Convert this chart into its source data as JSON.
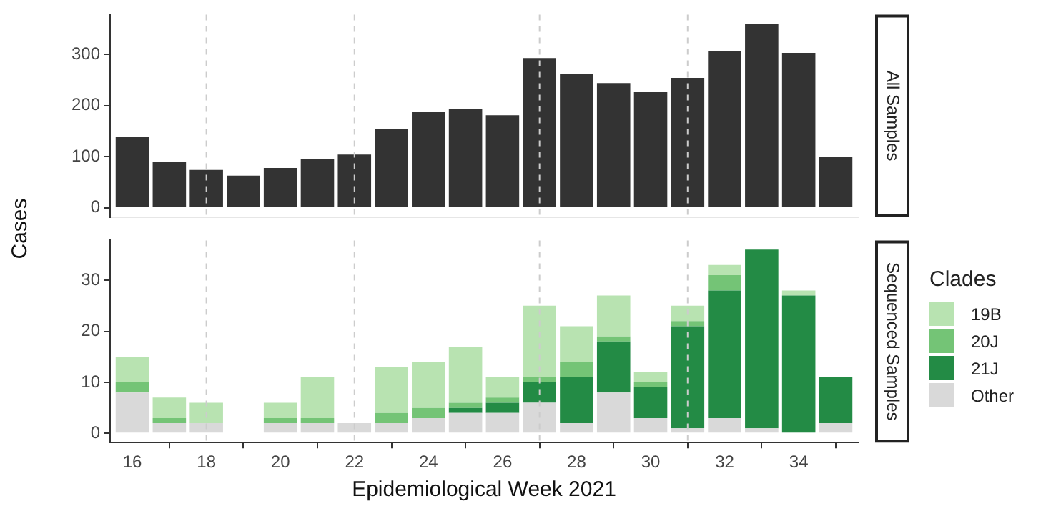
{
  "chart_data": [
    {
      "type": "bar",
      "annotations": [
        "All Samples"
      ],
      "x": [
        16,
        17,
        18,
        19,
        20,
        21,
        22,
        23,
        24,
        25,
        26,
        27,
        28,
        29,
        30,
        31,
        32,
        33,
        34,
        35
      ],
      "values": [
        138,
        90,
        74,
        63,
        78,
        95,
        104,
        154,
        187,
        194,
        181,
        293,
        261,
        244,
        226,
        254,
        306,
        360,
        303,
        99
      ],
      "color": "#333333",
      "xlim": [
        15.4,
        35.6
      ],
      "xticks": [
        16,
        18,
        20,
        22,
        24,
        26,
        28,
        30,
        32,
        34
      ],
      "ylim": [
        -18,
        378
      ],
      "yticks": [
        0,
        100,
        200,
        300
      ],
      "tick_labels": "y",
      "ref_lines": [
        {
          "axis": "x",
          "value": 18,
          "color": "#cccccc",
          "line_style": "dashed"
        },
        {
          "axis": "x",
          "value": 22,
          "color": "#cccccc",
          "line_style": "dashed"
        },
        {
          "axis": "x",
          "value": 27,
          "color": "#cccccc",
          "line_style": "dashed"
        },
        {
          "axis": "x",
          "value": 31,
          "color": "#cccccc",
          "line_style": "dashed"
        }
      ]
    },
    {
      "type": "bar",
      "annotations": [
        "Sequenced Samples"
      ],
      "xlabel": "Epidemiological Week 2021",
      "ylabel": "Cases",
      "legend_title": "Clades",
      "legend": "right",
      "stacked": true,
      "x": [
        16,
        17,
        18,
        19,
        20,
        21,
        22,
        23,
        24,
        25,
        26,
        27,
        28,
        29,
        30,
        31,
        32,
        33,
        34,
        35
      ],
      "series": [
        {
          "name": "Other",
          "color": "#d9d9d9",
          "values": [
            8,
            2,
            2,
            null,
            2,
            2,
            2,
            2,
            3,
            4,
            4,
            6,
            2,
            8,
            3,
            1,
            3,
            1,
            0,
            2
          ]
        },
        {
          "name": "21J",
          "color": "#238b45",
          "values": [
            null,
            null,
            null,
            null,
            null,
            null,
            null,
            null,
            null,
            1,
            2,
            4,
            9,
            10,
            6,
            20,
            25,
            35,
            27,
            9
          ]
        },
        {
          "name": "20J",
          "color": "#74c476",
          "values": [
            2,
            1,
            null,
            null,
            1,
            1,
            null,
            2,
            2,
            1,
            1,
            1,
            3,
            1,
            1,
            1,
            3,
            null,
            null,
            null
          ]
        },
        {
          "name": "19B",
          "color": "#b8e3b1",
          "values": [
            5,
            4,
            4,
            null,
            3,
            8,
            null,
            9,
            9,
            11,
            4,
            14,
            7,
            8,
            2,
            3,
            2,
            null,
            1,
            null
          ]
        }
      ],
      "xlim": [
        15.4,
        35.6
      ],
      "xticks": [
        16,
        18,
        20,
        22,
        24,
        26,
        28,
        30,
        32,
        34
      ],
      "ylim": [
        -1.8,
        37.8
      ],
      "yticks": [
        0,
        10,
        20,
        30
      ],
      "ref_lines": [
        {
          "axis": "x",
          "value": 18,
          "color": "#cccccc",
          "line_style": "dashed"
        },
        {
          "axis": "x",
          "value": 22,
          "color": "#cccccc",
          "line_style": "dashed"
        },
        {
          "axis": "x",
          "value": 27,
          "color": "#cccccc",
          "line_style": "dashed"
        },
        {
          "axis": "x",
          "value": 31,
          "color": "#cccccc",
          "line_style": "dashed"
        }
      ]
    }
  ]
}
